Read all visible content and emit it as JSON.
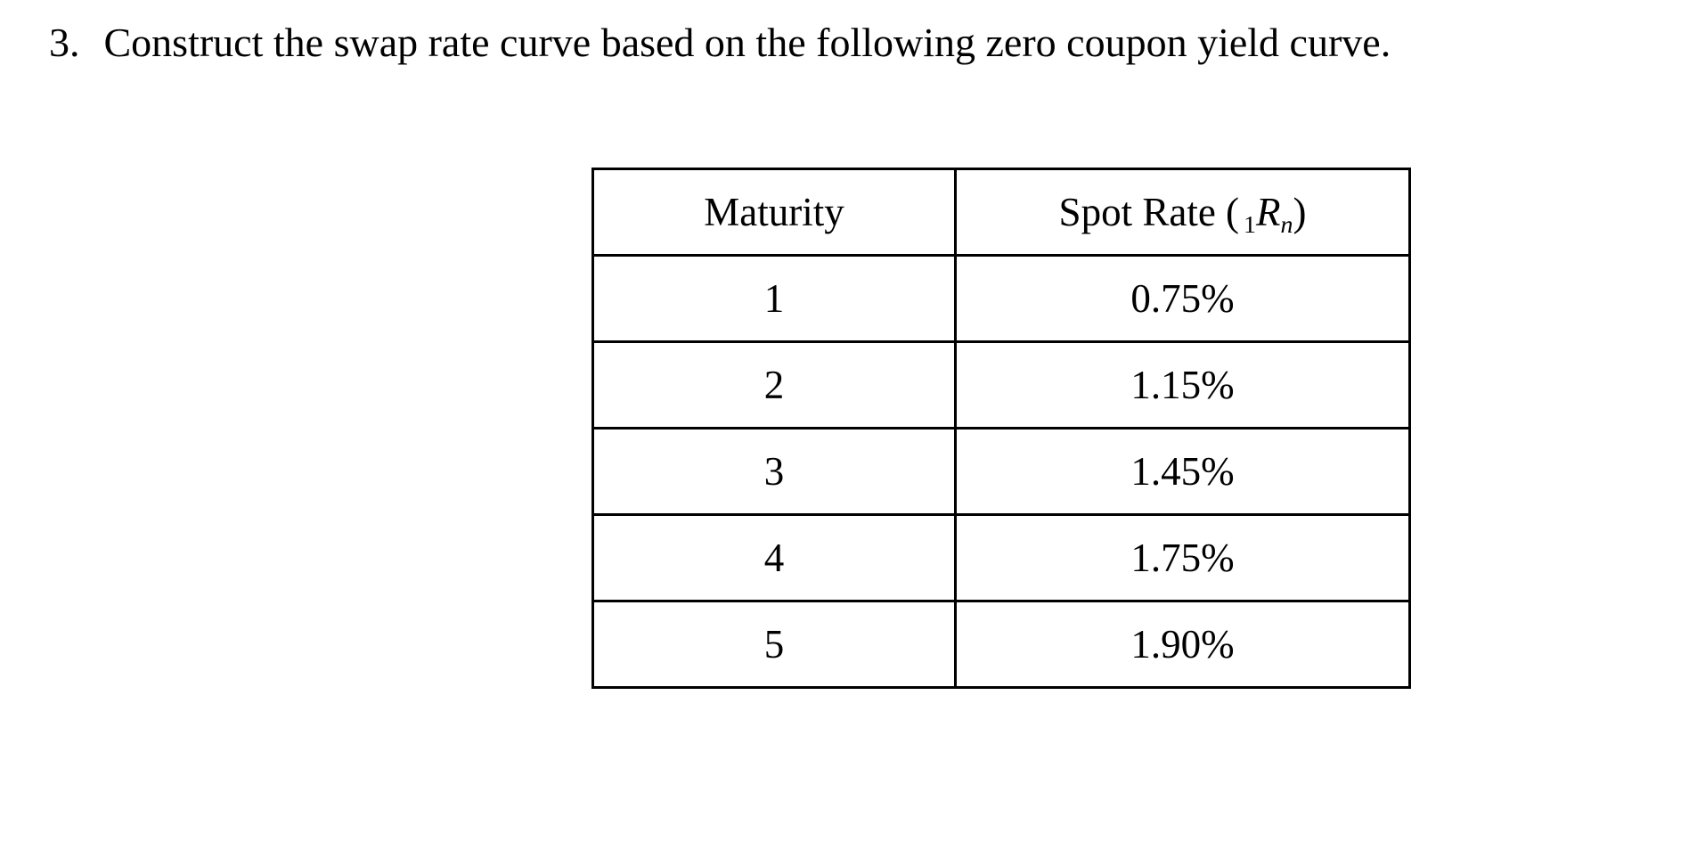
{
  "page": {
    "background_color": "#ffffff",
    "text_color": "#000000"
  },
  "problem": {
    "number": "3.",
    "text": "Construct the swap rate curve based on the following zero coupon yield curve."
  },
  "table": {
    "maturity_header": "Maturity",
    "spot_rate_header": {
      "label": "Spot Rate (",
      "pre_subscript": "1",
      "symbol": "R",
      "subscript": "n",
      "close_paren": ")"
    },
    "rows": [
      {
        "maturity": "1",
        "spot_rate": "0.75%"
      },
      {
        "maturity": "2",
        "spot_rate": "1.15%"
      },
      {
        "maturity": "3",
        "spot_rate": "1.45%"
      },
      {
        "maturity": "4",
        "spot_rate": "1.75%"
      },
      {
        "maturity": "5",
        "spot_rate": "1.90%"
      }
    ]
  }
}
